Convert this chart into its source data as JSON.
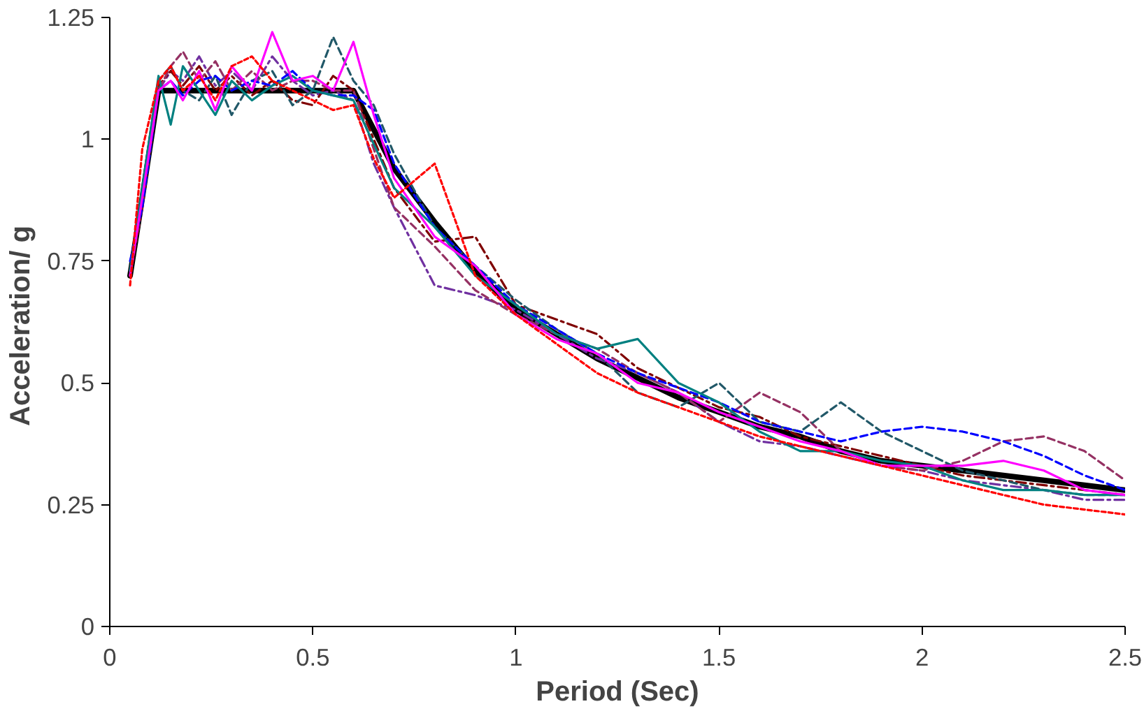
{
  "chart_data": {
    "type": "line",
    "xlabel": "Period (Sec)",
    "ylabel": "Acceleration/  g",
    "x": [
      0.05,
      0.08,
      0.12,
      0.15,
      0.18,
      0.22,
      0.26,
      0.3,
      0.35,
      0.4,
      0.45,
      0.5,
      0.55,
      0.6,
      0.65,
      0.7,
      0.8,
      0.9,
      1.0,
      1.1,
      1.2,
      1.3,
      1.4,
      1.5,
      1.6,
      1.7,
      1.8,
      1.9,
      2.0,
      2.1,
      2.2,
      2.3,
      2.4,
      2.5
    ],
    "series": [
      {
        "color": "#ff0000",
        "line_style": "dotted",
        "values": [
          0.7,
          0.98,
          1.12,
          1.15,
          1.1,
          1.13,
          1.08,
          1.15,
          1.17,
          1.12,
          1.1,
          1.08,
          1.06,
          1.07,
          0.96,
          0.88,
          0.95,
          0.72,
          0.64,
          0.58,
          0.52,
          0.48,
          0.45,
          0.42,
          0.39,
          0.37,
          0.35,
          0.33,
          0.31,
          0.29,
          0.27,
          0.25,
          0.24,
          0.23
        ]
      },
      {
        "color": "#ff00ff",
        "line_style": "solid",
        "values": [
          0.72,
          0.88,
          1.1,
          1.12,
          1.08,
          1.14,
          1.06,
          1.15,
          1.1,
          1.22,
          1.12,
          1.13,
          1.1,
          1.2,
          1.05,
          0.92,
          0.8,
          0.74,
          0.64,
          0.59,
          0.56,
          0.5,
          0.48,
          0.44,
          0.41,
          0.38,
          0.36,
          0.33,
          0.33,
          0.33,
          0.34,
          0.32,
          0.28,
          0.27
        ]
      },
      {
        "color": "#008080",
        "line_style": "solid",
        "values": [
          0.73,
          0.9,
          1.13,
          1.03,
          1.15,
          1.1,
          1.05,
          1.12,
          1.08,
          1.11,
          1.13,
          1.1,
          1.09,
          1.08,
          0.99,
          0.9,
          0.82,
          0.72,
          0.66,
          0.6,
          0.57,
          0.59,
          0.5,
          0.46,
          0.4,
          0.36,
          0.36,
          0.34,
          0.33,
          0.3,
          0.28,
          0.28,
          0.27,
          0.27
        ]
      },
      {
        "color": "#0000ff",
        "line_style": "dashed",
        "values": [
          0.75,
          0.86,
          1.1,
          1.12,
          1.09,
          1.12,
          1.13,
          1.1,
          1.12,
          1.11,
          1.14,
          1.1,
          1.09,
          1.09,
          1.06,
          0.95,
          0.82,
          0.74,
          0.66,
          0.61,
          0.56,
          0.52,
          0.49,
          0.46,
          0.42,
          0.4,
          0.38,
          0.4,
          0.41,
          0.4,
          0.38,
          0.35,
          0.31,
          0.28
        ]
      },
      {
        "color": "#215868",
        "line_style": "dashed",
        "values": [
          0.73,
          0.88,
          1.12,
          1.15,
          1.1,
          1.08,
          1.13,
          1.05,
          1.12,
          1.14,
          1.07,
          1.1,
          1.21,
          1.12,
          1.07,
          0.97,
          0.82,
          0.74,
          0.67,
          0.61,
          0.56,
          0.48,
          0.45,
          0.5,
          0.42,
          0.4,
          0.46,
          0.4,
          0.36,
          0.32,
          0.3,
          0.28,
          0.27,
          0.27
        ]
      },
      {
        "color": "#953163",
        "line_style": "dashed",
        "values": [
          0.72,
          0.87,
          1.1,
          1.15,
          1.18,
          1.12,
          1.16,
          1.1,
          1.14,
          1.1,
          1.12,
          1.12,
          1.1,
          1.1,
          0.98,
          0.86,
          0.78,
          0.69,
          0.64,
          0.6,
          0.57,
          0.52,
          0.48,
          0.42,
          0.48,
          0.44,
          0.36,
          0.33,
          0.32,
          0.34,
          0.38,
          0.39,
          0.36,
          0.3
        ]
      },
      {
        "color": "#7f0000",
        "line_style": "dashdot",
        "values": [
          0.72,
          0.86,
          1.11,
          1.14,
          1.11,
          1.15,
          1.1,
          1.13,
          1.09,
          1.12,
          1.08,
          1.07,
          1.13,
          1.1,
          1.0,
          0.9,
          0.79,
          0.8,
          0.66,
          0.63,
          0.6,
          0.53,
          0.49,
          0.45,
          0.43,
          0.39,
          0.37,
          0.35,
          0.33,
          0.31,
          0.3,
          0.29,
          0.28,
          0.27
        ]
      },
      {
        "color": "#7030a0",
        "line_style": "dashdot",
        "values": [
          0.72,
          0.86,
          1.1,
          1.14,
          1.12,
          1.17,
          1.11,
          1.14,
          1.1,
          1.17,
          1.12,
          1.09,
          1.1,
          1.08,
          0.95,
          0.86,
          0.7,
          0.68,
          0.65,
          0.6,
          0.55,
          0.52,
          0.48,
          0.42,
          0.38,
          0.37,
          0.35,
          0.33,
          0.32,
          0.3,
          0.29,
          0.28,
          0.26,
          0.26
        ]
      },
      {
        "color": "#000000",
        "line_style": "solid",
        "values": [
          0.72,
          0.88,
          1.1,
          1.1,
          1.1,
          1.1,
          1.1,
          1.1,
          1.1,
          1.1,
          1.1,
          1.1,
          1.1,
          1.1,
          1.02,
          0.94,
          0.83,
          0.73,
          0.65,
          0.6,
          0.55,
          0.51,
          0.47,
          0.44,
          0.41,
          0.39,
          0.36,
          0.34,
          0.33,
          0.32,
          0.31,
          0.3,
          0.29,
          0.28
        ]
      }
    ],
    "xlim": [
      0,
      2.5
    ],
    "ylim": [
      0,
      1.25
    ],
    "xticks": [
      0,
      {
        "value": 0.5,
        "label": "0.5"
      },
      1,
      {
        "value": 1.5,
        "label": "1.5"
      },
      2,
      {
        "value": 2.5,
        "label": "2.5"
      }
    ],
    "yticks": [
      0,
      {
        "value": 0.25,
        "label": "0.25"
      },
      {
        "value": 0.5,
        "label": "0.5"
      },
      {
        "value": 0.75,
        "label": "0.75"
      },
      1,
      {
        "value": 1.25,
        "label": "1.25"
      }
    ],
    "grid": false
  }
}
